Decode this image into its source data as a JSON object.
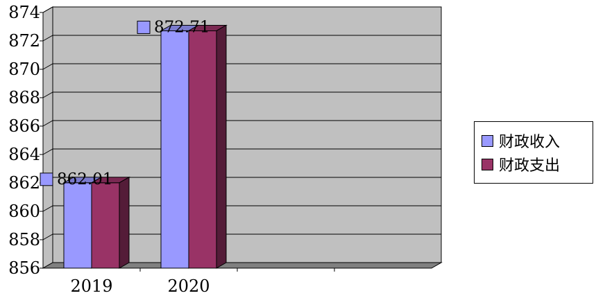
{
  "chart_data": {
    "type": "bar",
    "categories": [
      "2019",
      "2020"
    ],
    "series": [
      {
        "name": "财政收入",
        "values": [
          862.01,
          872.71
        ],
        "color": "#9999ff"
      },
      {
        "name": "财政支出",
        "values": [
          862.01,
          872.71
        ],
        "color": "#993366"
      }
    ],
    "ylim": [
      856,
      874
    ],
    "y_ticks": [
      "856",
      "858",
      "860",
      "862",
      "864",
      "866",
      "868",
      "870",
      "872",
      "874"
    ],
    "data_labels": [
      "862.01",
      "872.71"
    ],
    "grid": true,
    "legend_position": "right",
    "plot_background": "#c0c0c0",
    "floor_color": "#808080"
  }
}
